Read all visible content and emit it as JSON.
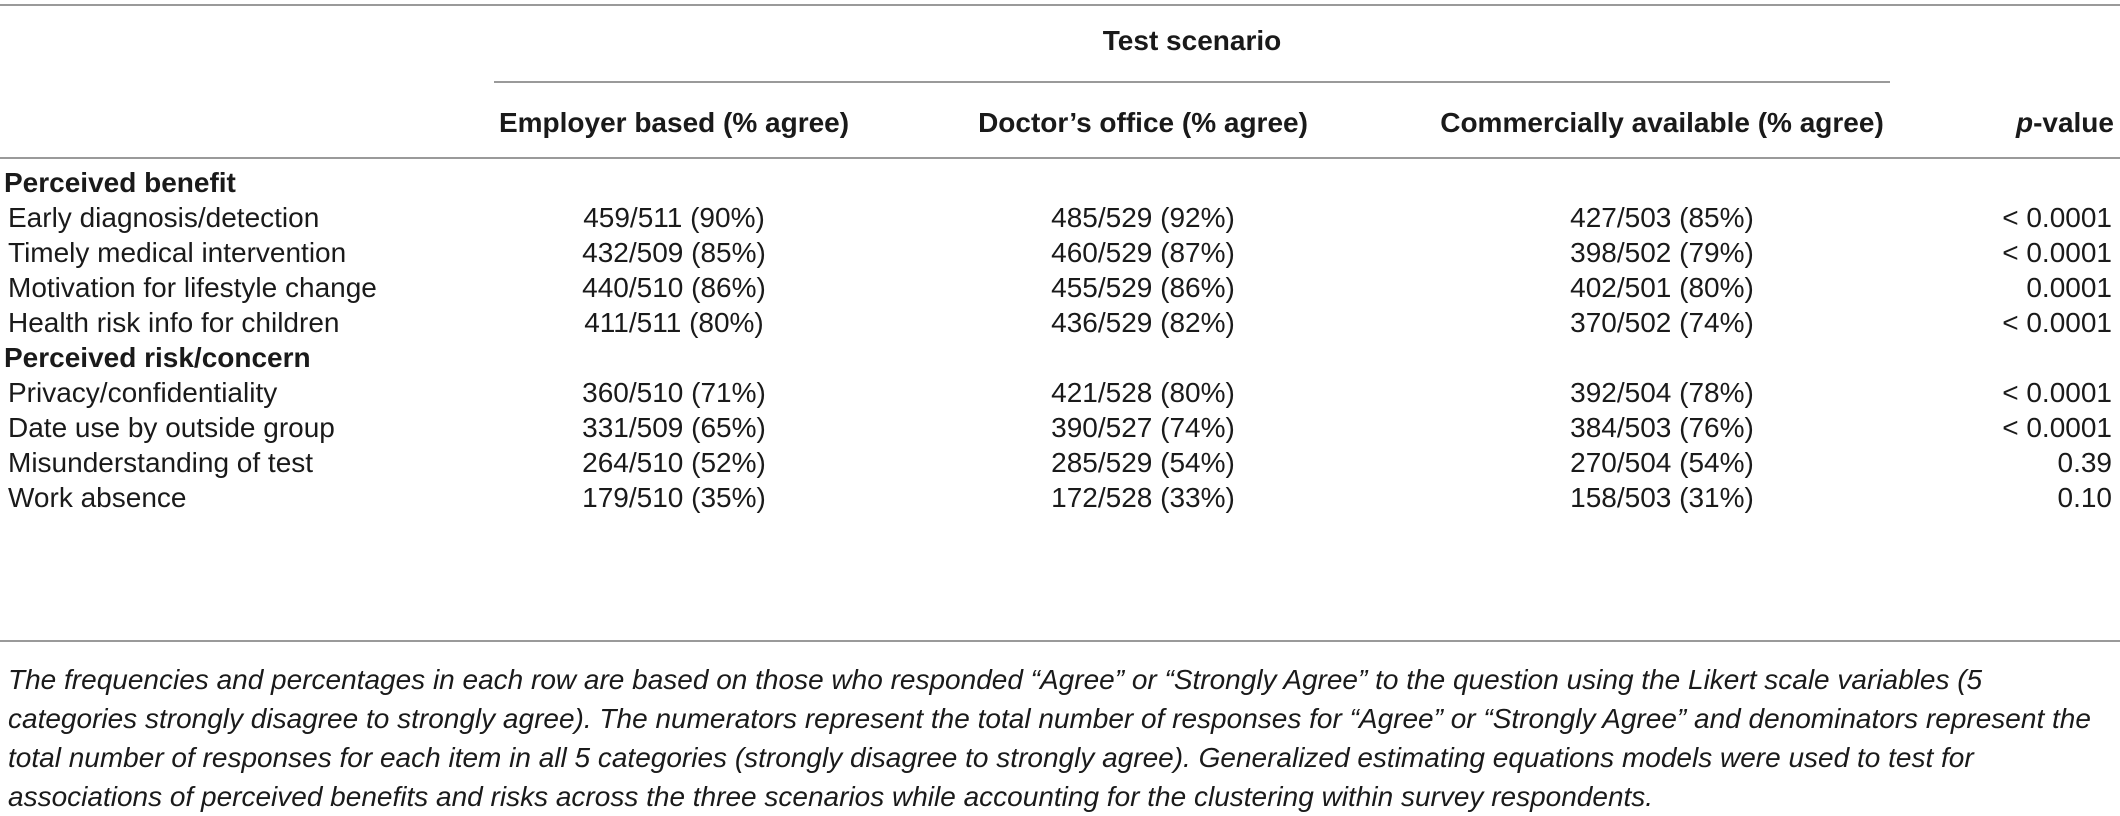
{
  "table": {
    "spanner": "Test scenario",
    "columns": {
      "employer": "Employer based (% agree)",
      "doctor": "Doctor’s office (% agree)",
      "commercial": "Commercially available (% agree)",
      "p_italic": "p",
      "p_rest": "-value"
    },
    "rows": [
      {
        "label": "Perceived benefit",
        "section": true,
        "employer": "",
        "doctor": "",
        "commercial": "",
        "p": ""
      },
      {
        "label": "Early diagnosis/detection",
        "employer": "459/511 (90%)",
        "doctor": "485/529 (92%)",
        "commercial": "427/503 (85%)",
        "p": "< 0.0001"
      },
      {
        "label": "Timely medical intervention",
        "employer": "432/509 (85%)",
        "doctor": "460/529 (87%)",
        "commercial": "398/502 (79%)",
        "p": "< 0.0001"
      },
      {
        "label": "Motivation for lifestyle change",
        "employer": "440/510 (86%)",
        "doctor": "455/529 (86%)",
        "commercial": "402/501 (80%)",
        "p": "0.0001"
      },
      {
        "label": "Health risk info for children",
        "employer": "411/511 (80%)",
        "doctor": "436/529 (82%)",
        "commercial": "370/502 (74%)",
        "p": "< 0.0001"
      },
      {
        "label": "Perceived risk/concern",
        "section": true,
        "employer": "",
        "doctor": "",
        "commercial": "",
        "p": ""
      },
      {
        "label": "Privacy/confidentiality",
        "employer": "360/510 (71%)",
        "doctor": "421/528 (80%)",
        "commercial": "392/504 (78%)",
        "p": "< 0.0001"
      },
      {
        "label": "Date use by outside group",
        "employer": "331/509 (65%)",
        "doctor": "390/527 (74%)",
        "commercial": "384/503 (76%)",
        "p": "< 0.0001"
      },
      {
        "label": "Misunderstanding of test",
        "employer": "264/510 (52%)",
        "doctor": "285/529 (54%)",
        "commercial": "270/504 (54%)",
        "p": "0.39"
      },
      {
        "label": "Work absence",
        "employer": "179/510 (35%)",
        "doctor": "172/528 (33%)",
        "commercial": "158/503 (31%)",
        "p": "0.10"
      }
    ],
    "footnote": "The frequencies and percentages in each row are based on those who responded “Agree” or “Strongly Agree” to the question using the Likert scale variables (5 categories strongly disagree to strongly agree). The numerators represent the total number of responses for “Agree” or “Strongly Agree” and denominators represent the total number of responses for each item in all 5 categories (strongly disagree to strongly agree). Generalized estimating equations models were used to test for associations of perceived benefits and risks across the three scenarios while accounting for the clustering within survey respondents."
  }
}
